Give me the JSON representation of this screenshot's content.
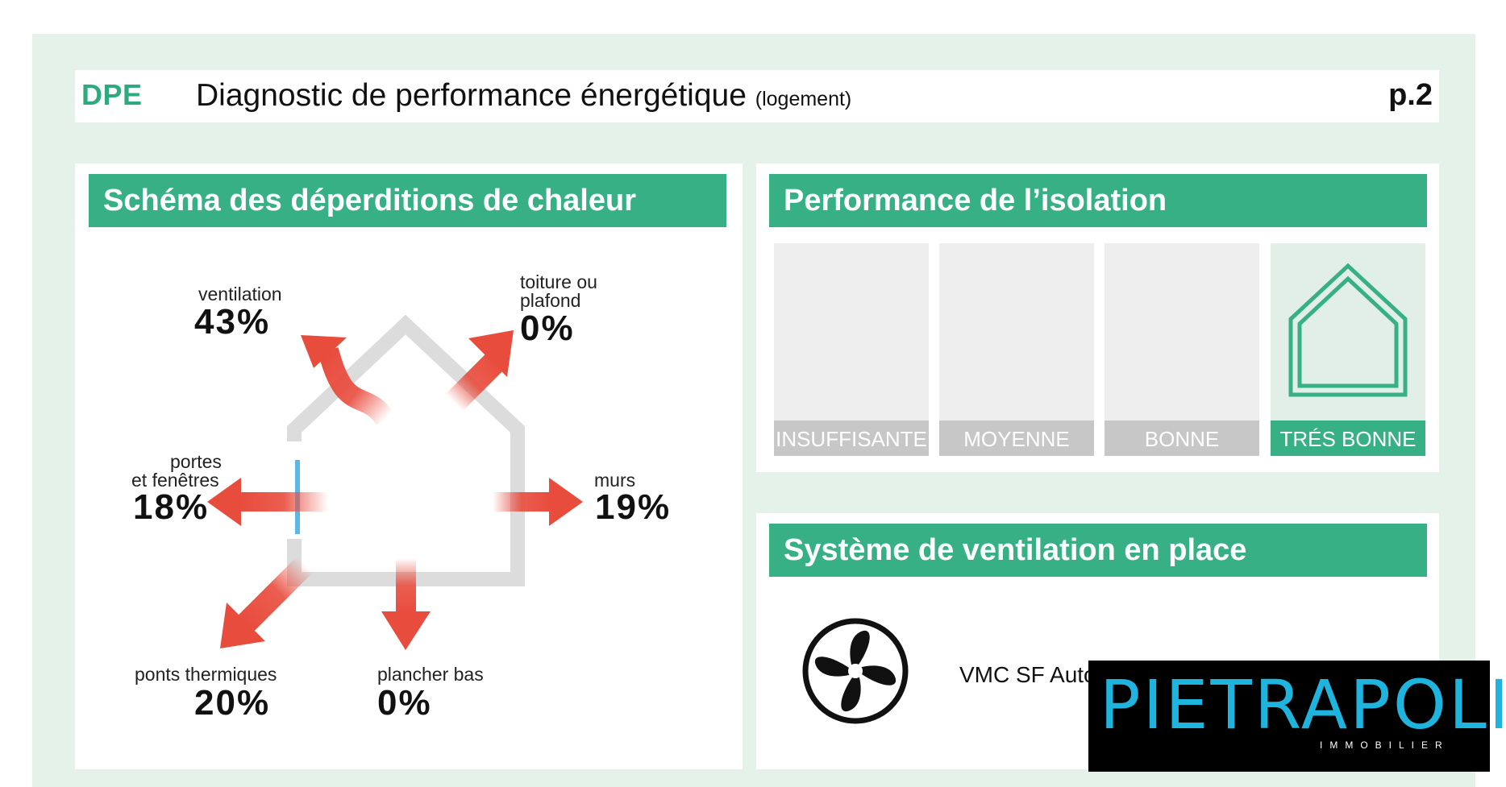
{
  "header": {
    "tag": "DPE",
    "title": "Diagnostic de performance énergétique",
    "subtitle": "(logement)",
    "page": "p.2"
  },
  "heat_loss": {
    "title": "Schéma des déperditions de chaleur",
    "items": {
      "ventilation": {
        "label": "ventilation",
        "value": "43%"
      },
      "roof": {
        "label_line1": "toiture ou",
        "label_line2": "plafond",
        "value": "0%"
      },
      "windows": {
        "label_line1": "portes",
        "label_line2": "et fenêtres",
        "value": "18%"
      },
      "walls": {
        "label": "murs",
        "value": "19%"
      },
      "thermal_bridges": {
        "label": "ponts thermiques",
        "value": "20%"
      },
      "floor": {
        "label": "plancher bas",
        "value": "0%"
      }
    }
  },
  "insulation": {
    "title": "Performance de l’isolation",
    "levels": [
      "INSUFFISANTE",
      "MOYENNE",
      "BONNE",
      "TRÉS BONNE"
    ],
    "selected": "TRÉS BONNE"
  },
  "ventilation_system": {
    "title": "Système de ventilation en place",
    "value": "VMC SF Auto",
    "icon": "fan-icon"
  },
  "logo": {
    "name": "PIETRAPOLIS",
    "sub": "IMMOBILIER"
  },
  "colors": {
    "accent": "#37b086",
    "dpe_green": "#2eab7e",
    "arrow_red": "#e84c3d",
    "logo_blue": "#1fb4de"
  }
}
